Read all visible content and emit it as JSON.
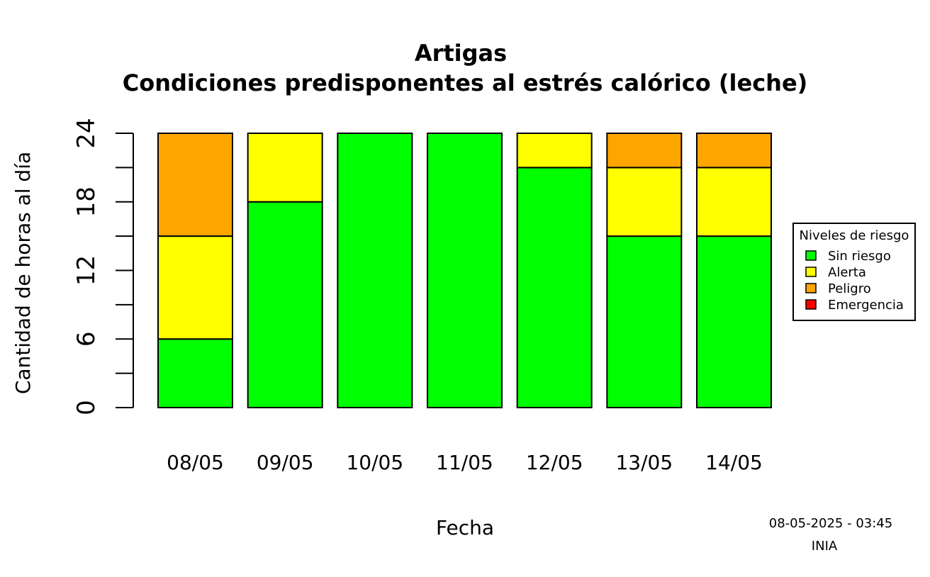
{
  "chart_data": {
    "type": "bar",
    "stacked": true,
    "title": "Artigas",
    "subtitle": "Condiciones predisponentes al estrés calórico (leche)",
    "xlabel": "Fecha",
    "ylabel": "Cantidad de horas al día",
    "ylim": [
      0,
      24
    ],
    "yticks": [
      0,
      6,
      12,
      18,
      24
    ],
    "ytick_labels": [
      "0",
      "6",
      "12",
      "18",
      "24"
    ],
    "categories": [
      "08/05",
      "09/05",
      "10/05",
      "11/05",
      "12/05",
      "13/05",
      "14/05"
    ],
    "series": [
      {
        "name": "Sin riesgo",
        "color": "#00ff00",
        "values": [
          6,
          18,
          24,
          24,
          21,
          15,
          15
        ]
      },
      {
        "name": "Alerta",
        "color": "#ffff00",
        "values": [
          9,
          6,
          0,
          0,
          3,
          6,
          6
        ]
      },
      {
        "name": "Peligro",
        "color": "#ffa500",
        "values": [
          9,
          0,
          0,
          0,
          0,
          3,
          3
        ]
      },
      {
        "name": "Emergencia",
        "color": "#ff0000",
        "values": [
          0,
          0,
          0,
          0,
          0,
          0,
          0
        ]
      }
    ],
    "legend": {
      "title": "Niveles de riesgo",
      "placement": "right"
    },
    "grid": false
  },
  "footer": {
    "timestamp": "08-05-2025 - 03:45",
    "source": "INIA"
  }
}
